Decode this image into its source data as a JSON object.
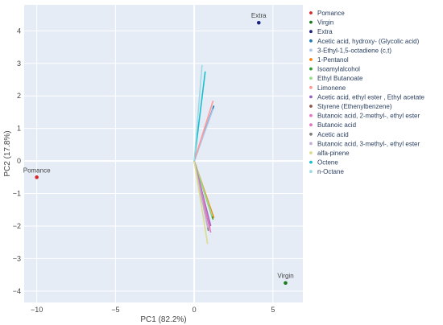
{
  "chart_data": {
    "type": "scatter",
    "xlabel": "PC1 (82.2%)",
    "ylabel": "PC2 (17.8%)",
    "xlim": [
      -10.8,
      6.9
    ],
    "ylim": [
      -4.35,
      4.8
    ],
    "xticks": [
      -10,
      -5,
      0,
      5
    ],
    "yticks": [
      -4,
      -3,
      -2,
      -1,
      0,
      1,
      2,
      3,
      4
    ],
    "xtick_labels": [
      "−10",
      "−5",
      "0",
      "5"
    ],
    "ytick_labels": [
      "−4",
      "−3",
      "−2",
      "−1",
      "0",
      "1",
      "2",
      "3",
      "4"
    ],
    "grid": true,
    "legend_position": "right",
    "points": [
      {
        "name": "Pomance",
        "x": -10.0,
        "y": -0.5,
        "color": "#d62728"
      },
      {
        "name": "Virgin",
        "x": 5.8,
        "y": -3.75,
        "color": "#1a7a1a"
      },
      {
        "name": "Extra",
        "x": 4.1,
        "y": 4.25,
        "color": "#1a237e"
      }
    ],
    "loadings": [
      {
        "name": "Acetic acid, hydroxy-  (Glycolic acid)",
        "x": 1.25,
        "y": 1.7,
        "color": "#1f77b4"
      },
      {
        "name": "3-Ethyl-1,5-octadiene (c,t)",
        "x": 1.2,
        "y": 1.6,
        "color": "#aec7e8"
      },
      {
        "name": "1-Pentanol",
        "x": 1.25,
        "y": -1.75,
        "color": "#ff7f0e"
      },
      {
        "name": "Isoamylalcohol",
        "x": 1.2,
        "y": -1.8,
        "color": "#2ca02c"
      },
      {
        "name": "Ethyl Butanoate",
        "x": 1.15,
        "y": -1.7,
        "color": "#98df8a"
      },
      {
        "name": "Limonene",
        "x": 1.2,
        "y": 1.85,
        "color": "#ff9896"
      },
      {
        "name": "Acetic acid, ethyl ester , Ethyl acetate",
        "x": 1.05,
        "y": -2.0,
        "color": "#9467bd"
      },
      {
        "name": "Styrene (Ethenylbenzene)",
        "x": 1.0,
        "y": -2.1,
        "color": "#8c564b"
      },
      {
        "name": "Butanoic acid, 2-methyl-, ethyl ester",
        "x": 1.0,
        "y": -2.05,
        "color": "#e377c2"
      },
      {
        "name": "Butanoic acid",
        "x": 1.05,
        "y": -2.2,
        "color": "#e377c2"
      },
      {
        "name": "Acetic acid",
        "x": 0.9,
        "y": -2.15,
        "color": "#7f7f7f"
      },
      {
        "name": "Butanoic acid, 3-methyl-, ethyl ester",
        "x": 0.85,
        "y": -2.05,
        "color": "#c5b0d5"
      },
      {
        "name": "alfa-pinene",
        "x": 0.85,
        "y": -2.55,
        "color": "#dbdb8d"
      },
      {
        "name": "Octene",
        "x": 0.7,
        "y": 2.75,
        "color": "#17becf"
      },
      {
        "name": "n-Octane",
        "x": 0.5,
        "y": 2.95,
        "color": "#9edae5"
      }
    ],
    "legend": [
      {
        "name": "Pomance",
        "color": "#d62728"
      },
      {
        "name": "Virgin",
        "color": "#1a7a1a"
      },
      {
        "name": "Extra",
        "color": "#1a237e"
      },
      {
        "name": "Acetic acid, hydroxy-  (Glycolic acid)",
        "color": "#1f77b4"
      },
      {
        "name": "3-Ethyl-1,5-octadiene (c,t)",
        "color": "#aec7e8"
      },
      {
        "name": "1-Pentanol",
        "color": "#ff7f0e"
      },
      {
        "name": "Isoamylalcohol",
        "color": "#2ca02c"
      },
      {
        "name": "Ethyl Butanoate",
        "color": "#98df8a"
      },
      {
        "name": "Limonene",
        "color": "#ff9896"
      },
      {
        "name": "Acetic acid, ethyl ester , Ethyl acetate",
        "color": "#9467bd"
      },
      {
        "name": "Styrene (Ethenylbenzene)",
        "color": "#8c564b"
      },
      {
        "name": "Butanoic acid, 2-methyl-, ethyl ester",
        "color": "#e377c2"
      },
      {
        "name": "Butanoic acid",
        "color": "#e377c2"
      },
      {
        "name": "Acetic acid",
        "color": "#7f7f7f"
      },
      {
        "name": "Butanoic acid, 3-methyl-, ethyl ester",
        "color": "#c5b0d5"
      },
      {
        "name": "alfa-pinene",
        "color": "#dbdb8d"
      },
      {
        "name": "Octene",
        "color": "#17becf"
      },
      {
        "name": "n-Octane",
        "color": "#9edae5"
      }
    ]
  }
}
